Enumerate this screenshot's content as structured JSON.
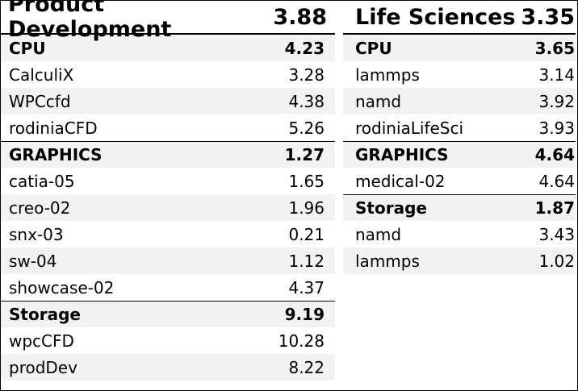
{
  "panels": [
    {
      "title": "Product Development",
      "score": "3.88",
      "rows": [
        {
          "type": "group",
          "label": "CPU",
          "value": "4.23"
        },
        {
          "type": "item",
          "label": "CalculiX",
          "value": "3.28"
        },
        {
          "type": "item",
          "label": "WPCcfd",
          "value": "4.38"
        },
        {
          "type": "item",
          "label": "rodiniaCFD",
          "value": "5.26"
        },
        {
          "type": "group",
          "label": "GRAPHICS",
          "value": "1.27"
        },
        {
          "type": "item",
          "label": "catia-05",
          "value": "1.65"
        },
        {
          "type": "item",
          "label": "creo-02",
          "value": "1.96"
        },
        {
          "type": "item",
          "label": "snx-03",
          "value": "0.21"
        },
        {
          "type": "item",
          "label": "sw-04",
          "value": "1.12"
        },
        {
          "type": "item",
          "label": "showcase-02",
          "value": "4.37"
        },
        {
          "type": "group",
          "label": "Storage",
          "value": "9.19"
        },
        {
          "type": "item",
          "label": "wpcCFD",
          "value": "10.28"
        },
        {
          "type": "item",
          "label": "prodDev",
          "value": "8.22"
        }
      ]
    },
    {
      "title": "Life Sciences",
      "score": "3.35",
      "rows": [
        {
          "type": "group",
          "label": "CPU",
          "value": "3.65"
        },
        {
          "type": "item",
          "label": "lammps",
          "value": "3.14"
        },
        {
          "type": "item",
          "label": "namd",
          "value": "3.92"
        },
        {
          "type": "item",
          "label": "rodiniaLifeSci",
          "value": "3.93"
        },
        {
          "type": "group",
          "label": "GRAPHICS",
          "value": "4.64"
        },
        {
          "type": "item",
          "label": "medical-02",
          "value": "4.64"
        },
        {
          "type": "group",
          "label": "Storage",
          "value": "1.87"
        },
        {
          "type": "item",
          "label": "namd",
          "value": "3.43"
        },
        {
          "type": "item",
          "label": "lammps",
          "value": "1.02"
        }
      ]
    }
  ]
}
